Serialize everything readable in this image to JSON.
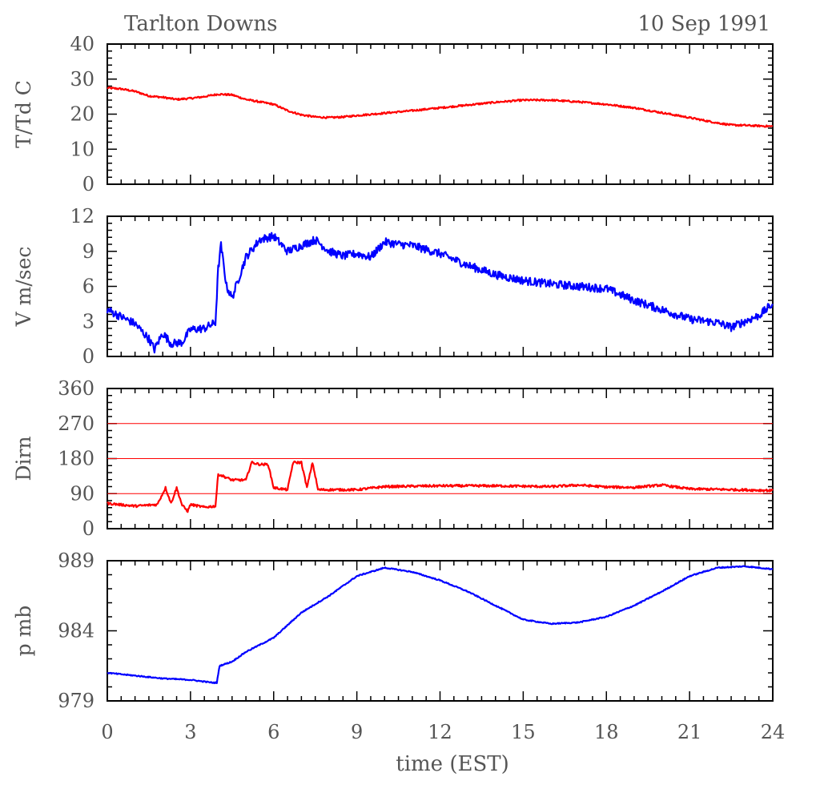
{
  "header": {
    "station": "Tarlton Downs",
    "date": "10 Sep 1991"
  },
  "chart_data": {
    "type": "line",
    "x_axis": {
      "label": "time (EST)",
      "range": [
        0,
        24
      ],
      "ticks": [
        "0",
        "3",
        "6",
        "9",
        "12",
        "15",
        "18",
        "21",
        "24"
      ]
    },
    "panels": [
      {
        "id": "temperature",
        "ylabel": "T/Td C",
        "ylim": [
          0,
          40
        ],
        "yticks": [
          "0",
          "10",
          "20",
          "30",
          "40"
        ],
        "series": [
          {
            "name": "T",
            "color": "#ff0000",
            "noise": 0.25,
            "points": [
              [
                0,
                27.5
              ],
              [
                0.5,
                27.2
              ],
              [
                1,
                26.5
              ],
              [
                1.5,
                25.2
              ],
              [
                2,
                24.8
              ],
              [
                2.5,
                24.2
              ],
              [
                3,
                24.5
              ],
              [
                3.5,
                25.0
              ],
              [
                4,
                25.7
              ],
              [
                4.5,
                25.5
              ],
              [
                5,
                24.2
              ],
              [
                5.5,
                23.5
              ],
              [
                6,
                22.8
              ],
              [
                6.5,
                21.0
              ],
              [
                7,
                19.8
              ],
              [
                7.5,
                19.2
              ],
              [
                8,
                19.0
              ],
              [
                8.5,
                19.2
              ],
              [
                9,
                19.6
              ],
              [
                10,
                20.3
              ],
              [
                11,
                21.0
              ],
              [
                12,
                21.8
              ],
              [
                13,
                22.6
              ],
              [
                14,
                23.4
              ],
              [
                15,
                24.0
              ],
              [
                16,
                24.0
              ],
              [
                17,
                23.5
              ],
              [
                18,
                22.8
              ],
              [
                19,
                21.8
              ],
              [
                20,
                20.4
              ],
              [
                21,
                19.0
              ],
              [
                22,
                17.5
              ],
              [
                22.5,
                16.9
              ],
              [
                23,
                16.8
              ],
              [
                24,
                16.5
              ]
            ]
          }
        ],
        "hlines": []
      },
      {
        "id": "wind-speed",
        "ylabel": "V m/sec",
        "ylim": [
          0,
          12
        ],
        "yticks": [
          "0",
          "3",
          "6",
          "9",
          "12"
        ],
        "series": [
          {
            "name": "V",
            "color": "#0000ff",
            "noise": 0.35,
            "points": [
              [
                0,
                4.0
              ],
              [
                0.5,
                3.4
              ],
              [
                1,
                2.8
              ],
              [
                1.5,
                1.5
              ],
              [
                1.7,
                0.6
              ],
              [
                2,
                2.0
              ],
              [
                2.3,
                1.1
              ],
              [
                2.7,
                1.2
              ],
              [
                3,
                2.3
              ],
              [
                3.5,
                2.4
              ],
              [
                3.9,
                2.9
              ],
              [
                4.0,
                7.5
              ],
              [
                4.1,
                9.5
              ],
              [
                4.3,
                6.0
              ],
              [
                4.5,
                5.0
              ],
              [
                5,
                8.5
              ],
              [
                5.5,
                10.0
              ],
              [
                6,
                10.3
              ],
              [
                6.5,
                9.0
              ],
              [
                7,
                9.5
              ],
              [
                7.5,
                10.0
              ],
              [
                8,
                9.0
              ],
              [
                8.5,
                8.6
              ],
              [
                9,
                8.8
              ],
              [
                9.5,
                8.5
              ],
              [
                10,
                9.8
              ],
              [
                10.5,
                9.6
              ],
              [
                11,
                9.5
              ],
              [
                12,
                8.8
              ],
              [
                13,
                7.8
              ],
              [
                14,
                7.0
              ],
              [
                15,
                6.5
              ],
              [
                16,
                6.2
              ],
              [
                17,
                6.0
              ],
              [
                18,
                5.8
              ],
              [
                19,
                4.8
              ],
              [
                20,
                4.0
              ],
              [
                21,
                3.2
              ],
              [
                22,
                2.9
              ],
              [
                22.5,
                2.5
              ],
              [
                23,
                3.0
              ],
              [
                23.5,
                3.5
              ],
              [
                24,
                4.5
              ]
            ]
          }
        ],
        "hlines": []
      },
      {
        "id": "wind-direction",
        "ylabel": "Dirn",
        "ylim": [
          0,
          360
        ],
        "yticks": [
          "0",
          "90",
          "180",
          "270",
          "360"
        ],
        "series": [
          {
            "name": "Dirn",
            "color": "#ff0000",
            "noise": 3,
            "points": [
              [
                0,
                65
              ],
              [
                1,
                58
              ],
              [
                1.8,
                62
              ],
              [
                2.1,
                105
              ],
              [
                2.3,
                65
              ],
              [
                2.5,
                105
              ],
              [
                2.7,
                60
              ],
              [
                2.9,
                45
              ],
              [
                3,
                62
              ],
              [
                3.5,
                55
              ],
              [
                3.9,
                58
              ],
              [
                4.0,
                140
              ],
              [
                4.5,
                125
              ],
              [
                5,
                125
              ],
              [
                5.2,
                170
              ],
              [
                5.5,
                165
              ],
              [
                5.8,
                165
              ],
              [
                6,
                105
              ],
              [
                6.5,
                100
              ],
              [
                6.7,
                170
              ],
              [
                7,
                170
              ],
              [
                7.2,
                105
              ],
              [
                7.4,
                170
              ],
              [
                7.6,
                100
              ],
              [
                8,
                100
              ],
              [
                9,
                100
              ],
              [
                10,
                108
              ],
              [
                12,
                110
              ],
              [
                14,
                110
              ],
              [
                16,
                108
              ],
              [
                17,
                112
              ],
              [
                18,
                107
              ],
              [
                19,
                106
              ],
              [
                20,
                112
              ],
              [
                21,
                102
              ],
              [
                22,
                101
              ],
              [
                24,
                98
              ]
            ]
          }
        ],
        "hlines": [
          90,
          180,
          270
        ]
      },
      {
        "id": "pressure",
        "ylabel": "p mb",
        "ylim": [
          979,
          989
        ],
        "yticks": [
          "979",
          "984",
          "989"
        ],
        "series": [
          {
            "name": "p",
            "color": "#0000ff",
            "noise": 0.04,
            "points": [
              [
                0,
                981.0
              ],
              [
                1,
                980.8
              ],
              [
                2,
                980.6
              ],
              [
                3,
                980.5
              ],
              [
                3.8,
                980.3
              ],
              [
                3.95,
                980.3
              ],
              [
                4.05,
                981.5
              ],
              [
                4.5,
                981.8
              ],
              [
                5,
                982.5
              ],
              [
                6,
                983.5
              ],
              [
                7,
                985.3
              ],
              [
                8,
                986.5
              ],
              [
                9,
                987.9
              ],
              [
                10,
                988.5
              ],
              [
                11,
                988.2
              ],
              [
                12,
                987.6
              ],
              [
                13,
                986.8
              ],
              [
                14,
                985.8
              ],
              [
                15,
                984.8
              ],
              [
                16,
                984.5
              ],
              [
                17,
                984.6
              ],
              [
                18,
                985.0
              ],
              [
                19,
                985.8
              ],
              [
                20,
                986.8
              ],
              [
                21,
                987.9
              ],
              [
                22,
                988.5
              ],
              [
                23,
                988.6
              ],
              [
                24,
                988.4
              ]
            ]
          }
        ],
        "hlines": []
      }
    ]
  }
}
